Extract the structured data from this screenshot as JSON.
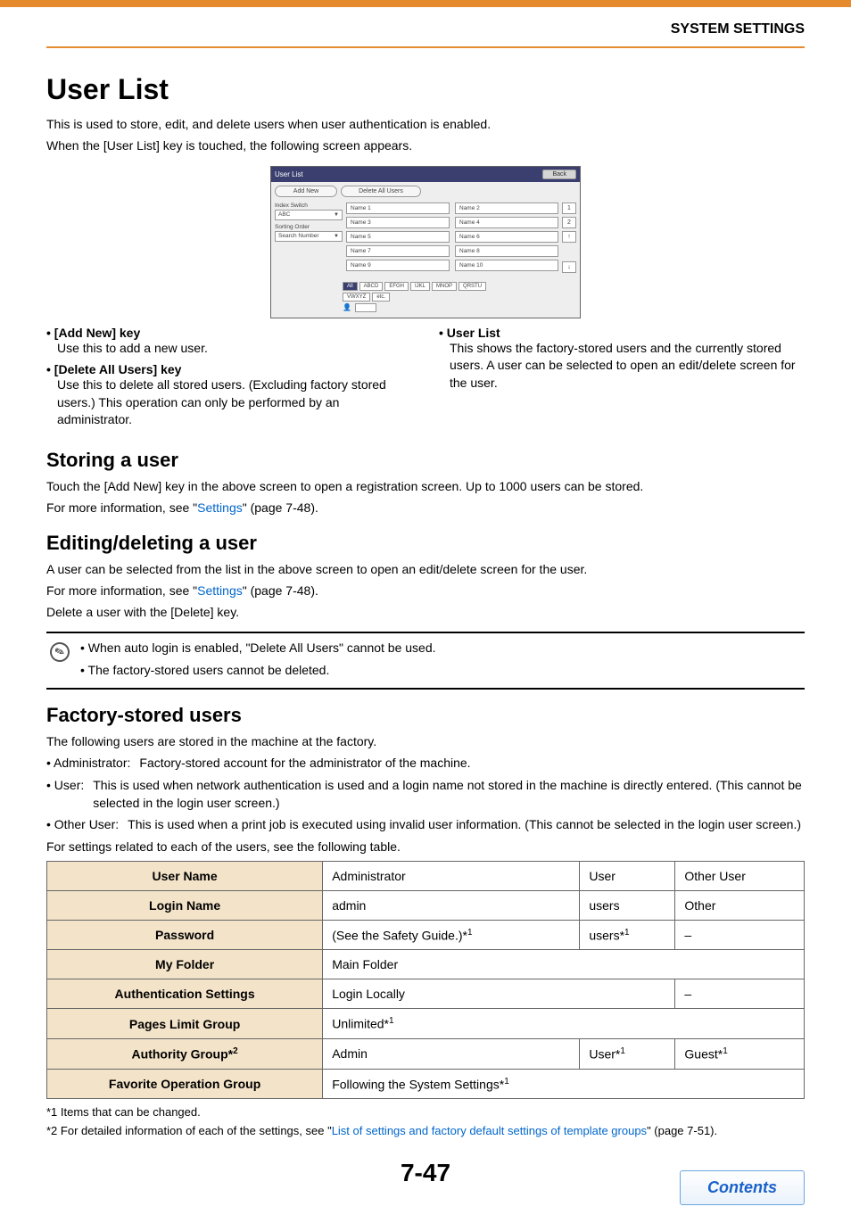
{
  "header": {
    "section": "SYSTEM SETTINGS"
  },
  "title": "User List",
  "intro": [
    "This is used to store, edit, and delete users when user authentication is enabled.",
    "When the [User List] key is touched, the following screen appears."
  ],
  "ui": {
    "title": "User List",
    "back": "Back",
    "add_new": "Add New",
    "delete_all": "Delete All Users",
    "side": {
      "index_switch_label": "Index Switch",
      "index_switch_value": "ABC",
      "sorting_label": "Sorting Order",
      "sorting_value": "Search Number"
    },
    "names": [
      "Name 1",
      "Name 2",
      "Name 3",
      "Name 4",
      "Name 5",
      "Name 6",
      "Name 7",
      "Name 8",
      "Name 9",
      "Name 10"
    ],
    "pages": [
      "1",
      "2"
    ],
    "arrows": [
      "↑",
      "↓"
    ],
    "tabs": [
      "All",
      "ABCD",
      "EFGH",
      "IJKL",
      "MNOP",
      "QRSTU",
      "VWXYZ",
      "etc."
    ],
    "user_icon": "👤"
  },
  "cols": {
    "left": [
      {
        "head": "[Add New] key",
        "body": "Use this to add a new user."
      },
      {
        "head": "[Delete All Users] key",
        "body": "Use this to delete all stored users. (Excluding factory stored users.) This operation can only be performed by an administrator."
      }
    ],
    "right": [
      {
        "head": "User List",
        "body": "This shows the factory-stored users and the currently stored users. A user can be selected to open an edit/delete screen for the user."
      }
    ]
  },
  "storing": {
    "heading": "Storing a user",
    "p1": "Touch the [Add New] key in the above screen to open a registration screen. Up to 1000 users can be stored.",
    "p2_a": "For more information, see \"",
    "p2_link": "Settings",
    "p2_b": "\" (page 7-48)."
  },
  "editing": {
    "heading": "Editing/deleting a user",
    "p1": "A user can be selected from the list in the above screen to open an edit/delete screen for the user.",
    "p2_a": "For more information, see \"",
    "p2_link": "Settings",
    "p2_b": "\" (page 7-48).",
    "p3": "Delete a user with the [Delete] key."
  },
  "note": {
    "lines": [
      "• When auto login is enabled, \"Delete All Users\" cannot be used.",
      "• The factory-stored users cannot be deleted."
    ]
  },
  "factory": {
    "heading": "Factory-stored users",
    "intro": "The following users are stored in the machine at the factory.",
    "roles": [
      {
        "lbl": "• Administrator:",
        "txt": "Factory-stored account for the administrator of the machine."
      },
      {
        "lbl": "• User:",
        "txt": "This is used when network authentication is used and a login name not stored in the machine is directly entered. (This cannot be selected in the login user screen.)"
      },
      {
        "lbl": "• Other User:",
        "txt": "This is used when a print job is executed using invalid user information. (This cannot be selected in the login user screen.)"
      }
    ],
    "tail": "For settings related to each of the users, see the following table."
  },
  "table": {
    "rows": [
      {
        "th": "User Name",
        "c": [
          "Administrator",
          "User",
          "Other User"
        ],
        "span": [
          1,
          1,
          1
        ]
      },
      {
        "th": "Login Name",
        "c": [
          "admin",
          "users",
          "Other"
        ],
        "span": [
          1,
          1,
          1
        ]
      },
      {
        "th": "Password",
        "c": [
          "(See the Safety Guide.)* 1",
          "users*1",
          "–"
        ],
        "span": [
          1,
          1,
          1
        ]
      },
      {
        "th": "My Folder",
        "c": [
          "Main Folder"
        ],
        "span": [
          3
        ]
      },
      {
        "th": "Authentication Settings",
        "c": [
          "Login Locally",
          "–"
        ],
        "span": [
          2,
          1
        ]
      },
      {
        "th": "Pages Limit Group",
        "c": [
          "Unlimited*1"
        ],
        "span": [
          3
        ]
      },
      {
        "th": "Authority Group*2",
        "c": [
          "Admin",
          "User*1",
          "Guest*1"
        ],
        "span": [
          1,
          1,
          1
        ]
      },
      {
        "th": "Favorite Operation Group",
        "c": [
          "Following the System Settings*1"
        ],
        "span": [
          3
        ]
      }
    ]
  },
  "footnotes": {
    "f1": "*1  Items that can be changed.",
    "f2_a": "*2  For detailed information of each of the settings, see \"",
    "f2_link": "List of settings and factory default settings of template groups",
    "f2_b": "\" (page 7-51)."
  },
  "page_number": "7-47",
  "contents_btn": "Contents"
}
